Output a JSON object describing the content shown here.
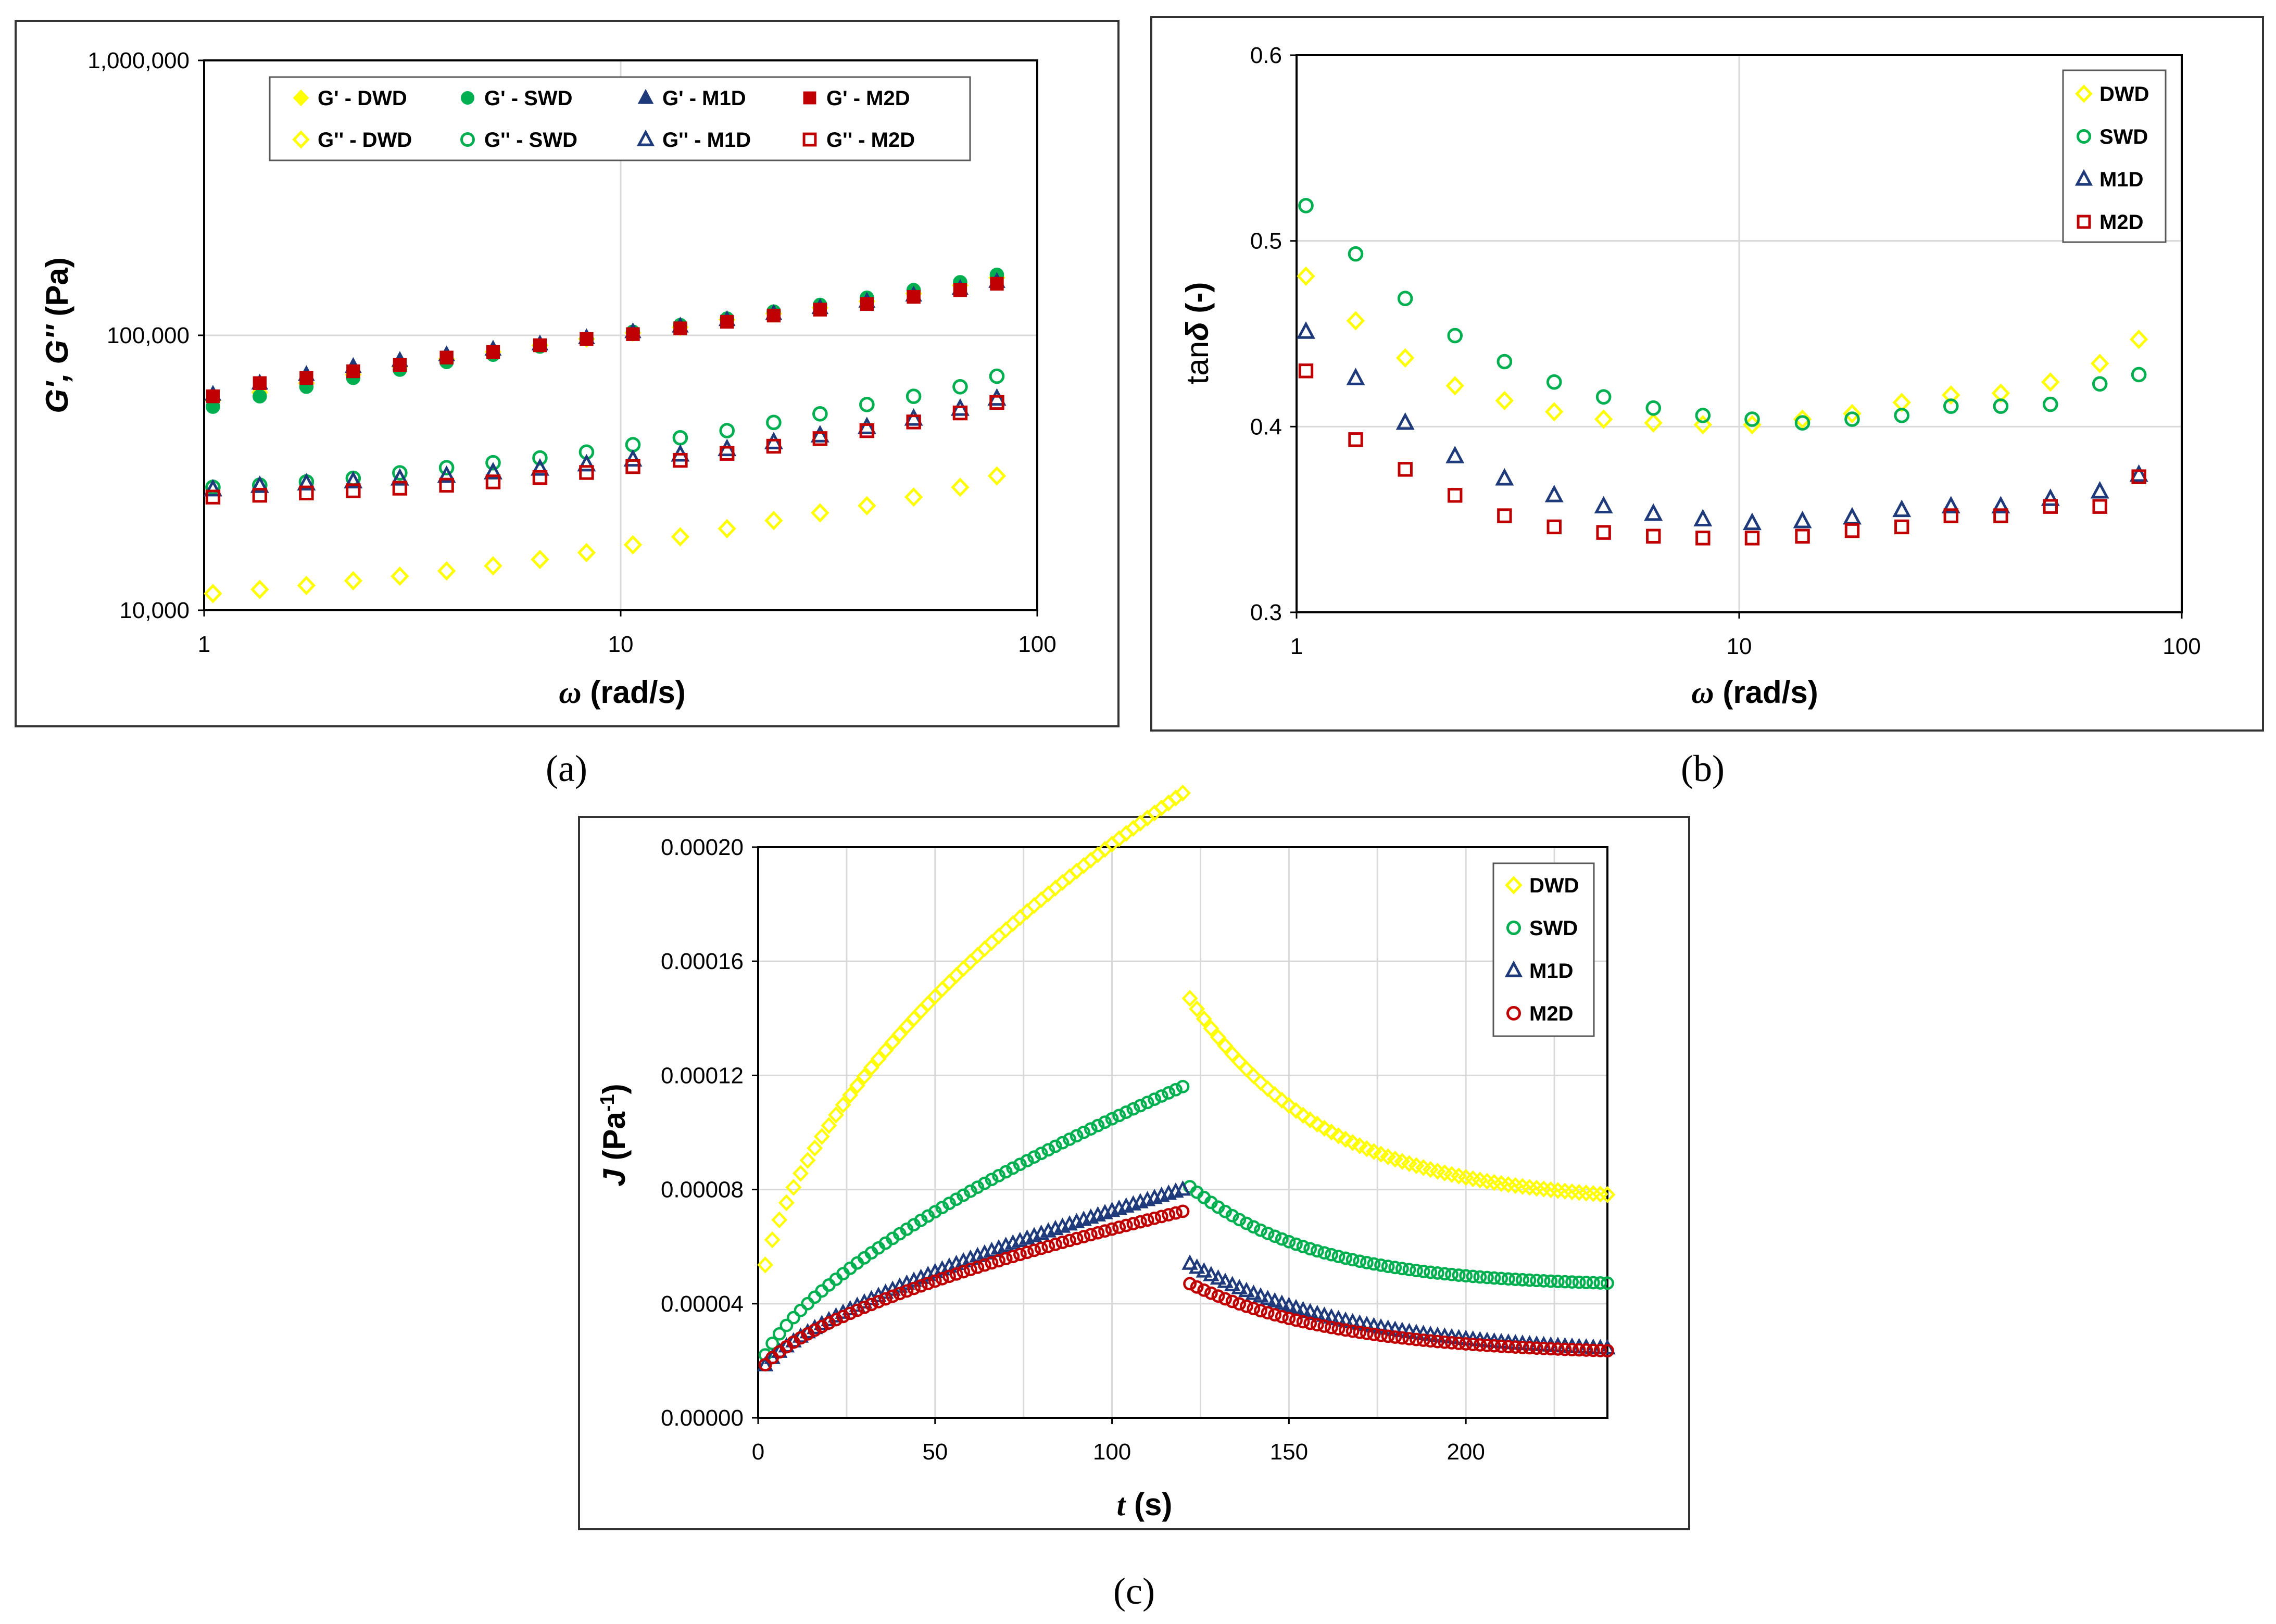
{
  "figure": {
    "panel_labels": [
      "(a)",
      "(b)",
      "(c)"
    ]
  },
  "colors": {
    "DWD": "#FFFF00",
    "SWD": "#00B050",
    "M1D": "#1F3A7A",
    "M2D": "#C00000"
  },
  "chart_data": [
    {
      "id": "a",
      "type": "scatter",
      "xscale": "log",
      "yscale": "log",
      "xlim": [
        1,
        100
      ],
      "ylim": [
        10000,
        1000000
      ],
      "xticks": [
        "1",
        "10",
        "100"
      ],
      "yticks": [
        "10,000",
        "100,000",
        "1,000,000"
      ],
      "xlabel_sym": "ω",
      "xlabel_unit": " (rad/s)",
      "ylabel_sym": "G', G''",
      "ylabel_unit": " (Pa)",
      "x": [
        1.05,
        1.36,
        1.76,
        2.28,
        2.95,
        3.82,
        4.94,
        6.4,
        8.28,
        10.7,
        13.9,
        18.0,
        23.3,
        30.1,
        39.0,
        50.5,
        65.3,
        80.0
      ],
      "series": [
        {
          "name": "G' - DWD",
          "marker": "diamond",
          "filled": true,
          "color": "#FFFF00",
          "values": [
            58000,
            62000,
            67000,
            72000,
            77000,
            82000,
            87000,
            92000,
            97000,
            102000,
            107000,
            114000,
            120000,
            126000,
            133000,
            142000,
            152000,
            162000
          ]
        },
        {
          "name": "G' - SWD",
          "marker": "circle",
          "filled": true,
          "color": "#00B050",
          "values": [
            55000,
            60000,
            65000,
            70000,
            75000,
            80000,
            85000,
            91000,
            97000,
            103000,
            109000,
            115000,
            122000,
            129000,
            137000,
            146000,
            156000,
            166000
          ]
        },
        {
          "name": "G' - M1D",
          "marker": "triangle",
          "filled": true,
          "color": "#1F3A7A",
          "values": [
            61000,
            67000,
            72000,
            77000,
            81000,
            85000,
            89000,
            93000,
            98000,
            103000,
            108000,
            114000,
            120000,
            126000,
            133000,
            140000,
            148000,
            157000
          ]
        },
        {
          "name": "G' - M2D",
          "marker": "square",
          "filled": true,
          "color": "#C00000",
          "values": [
            60000,
            67000,
            70000,
            74000,
            78000,
            83000,
            87000,
            92000,
            97000,
            101000,
            106000,
            112000,
            118000,
            124000,
            130000,
            138000,
            146000,
            154000
          ]
        },
        {
          "name": "G'' - DWD",
          "marker": "diamond",
          "filled": false,
          "color": "#FFFF00",
          "values": [
            11500,
            11900,
            12300,
            12800,
            13300,
            13900,
            14500,
            15300,
            16200,
            17300,
            18500,
            19800,
            21200,
            22600,
            24000,
            25800,
            28000,
            30800
          ]
        },
        {
          "name": "G'' - SWD",
          "marker": "circle",
          "filled": false,
          "color": "#00B050",
          "values": [
            28000,
            28500,
            29300,
            30200,
            31600,
            33000,
            34400,
            35800,
            37600,
            40000,
            42400,
            45000,
            48200,
            51800,
            56000,
            60000,
            65000,
            71000
          ]
        },
        {
          "name": "G'' - M1D",
          "marker": "triangle",
          "filled": false,
          "color": "#1F3A7A",
          "values": [
            27500,
            28300,
            28900,
            29400,
            30100,
            30800,
            31700,
            32700,
            33900,
            35300,
            36800,
            38500,
            40800,
            43200,
            46300,
            49700,
            54000,
            58800
          ]
        },
        {
          "name": "G'' - M2D",
          "marker": "square",
          "filled": false,
          "color": "#C00000",
          "values": [
            25800,
            26200,
            26700,
            27200,
            27800,
            28500,
            29300,
            30400,
            31700,
            33300,
            35100,
            37200,
            39500,
            42100,
            45000,
            48400,
            52200,
            57000
          ]
        }
      ],
      "legend_position": "top-center"
    },
    {
      "id": "b",
      "type": "scatter",
      "xscale": "log",
      "yscale": "linear",
      "xlim": [
        1,
        100
      ],
      "ylim": [
        0.3,
        0.6
      ],
      "xticks": [
        "1",
        "10",
        "100"
      ],
      "yticks": [
        "0.3",
        "0.4",
        "0.5",
        "0.6"
      ],
      "xlabel_sym": "ω",
      "xlabel_unit": " (rad/s)",
      "ylabel_pre": "tan",
      "ylabel_sym": "δ",
      "ylabel_unit": " (-)",
      "x": [
        1.05,
        1.36,
        1.76,
        2.28,
        2.95,
        3.82,
        4.94,
        6.4,
        8.28,
        10.7,
        13.9,
        18.0,
        23.3,
        30.1,
        39.0,
        50.5,
        65.3,
        80.0
      ],
      "series": [
        {
          "name": "DWD",
          "marker": "diamond",
          "filled": false,
          "color": "#FFFF00",
          "values": [
            0.481,
            0.457,
            0.437,
            0.422,
            0.414,
            0.408,
            0.404,
            0.402,
            0.401,
            0.401,
            0.404,
            0.407,
            0.413,
            0.417,
            0.418,
            0.424,
            0.434,
            0.447
          ]
        },
        {
          "name": "SWD",
          "marker": "circle",
          "filled": false,
          "color": "#00B050",
          "values": [
            0.519,
            0.493,
            0.469,
            0.449,
            0.435,
            0.424,
            0.416,
            0.41,
            0.406,
            0.404,
            0.402,
            0.404,
            0.406,
            0.411,
            0.411,
            0.412,
            0.423,
            0.428
          ]
        },
        {
          "name": "M1D",
          "marker": "triangle",
          "filled": false,
          "color": "#1F3A7A",
          "values": [
            0.451,
            0.426,
            0.402,
            0.384,
            0.372,
            0.363,
            0.357,
            0.353,
            0.35,
            0.348,
            0.349,
            0.351,
            0.355,
            0.357,
            0.357,
            0.361,
            0.365,
            0.374
          ]
        },
        {
          "name": "M2D",
          "marker": "square",
          "filled": false,
          "color": "#C00000",
          "values": [
            0.43,
            0.393,
            0.377,
            0.363,
            0.352,
            0.346,
            0.343,
            0.341,
            0.34,
            0.34,
            0.341,
            0.344,
            0.346,
            0.352,
            0.352,
            0.357,
            0.357,
            0.373
          ]
        }
      ],
      "legend_position": "top-right"
    },
    {
      "id": "c",
      "type": "scatter",
      "xscale": "linear",
      "yscale": "linear",
      "xlim": [
        0,
        240
      ],
      "ylim": [
        0,
        0.0002
      ],
      "xticks": [
        "0",
        "50",
        "100",
        "150",
        "200"
      ],
      "yticks": [
        "0.00000",
        "0.00004",
        "0.00008",
        "0.00012",
        "0.00016",
        "0.00020"
      ],
      "xlabel_sym": "t",
      "xlabel_unit": " (s)",
      "ylabel_sym": "J",
      "ylabel_unit": " (Pa",
      "ylabel_sup": "-1",
      "ylabel_end": ")",
      "t_step": 2,
      "t_end": 240,
      "t_switch": 120,
      "series": [
        {
          "name": "DWD",
          "marker": "diamond",
          "filled": false,
          "color": "#FFFF00",
          "creep": {
            "a": 3.5e-05,
            "b": 1.26e-05,
            "n": 0.56
          },
          "recovery": {
            "j0": 0.000147,
            "jinf": 7.5e-05,
            "tau": 38
          }
        },
        {
          "name": "SWD",
          "marker": "circle",
          "filled": false,
          "color": "#00B050",
          "creep": {
            "a": 1.5e-05,
            "b": 4.5e-06,
            "n": 0.65
          },
          "recovery": {
            "j0": 8.1e-05,
            "jinf": 4.6e-05,
            "tau": 35
          }
        },
        {
          "name": "M1D",
          "marker": "triangle",
          "filled": false,
          "color": "#1F3A7A",
          "creep": {
            "a": 1.4e-05,
            "b": 2.8e-06,
            "n": 0.66
          },
          "recovery": {
            "j0": 5.4e-05,
            "jinf": 2.2e-05,
            "tau": 45
          }
        },
        {
          "name": "M2D",
          "marker": "circle",
          "filled": false,
          "color": "#C00000",
          "creep": {
            "a": 1.4e-05,
            "b": 3e-06,
            "n": 0.62
          },
          "recovery": {
            "j0": 4.7e-05,
            "jinf": 2.2e-05,
            "tau": 42
          }
        }
      ],
      "legend_position": "top-right"
    }
  ]
}
